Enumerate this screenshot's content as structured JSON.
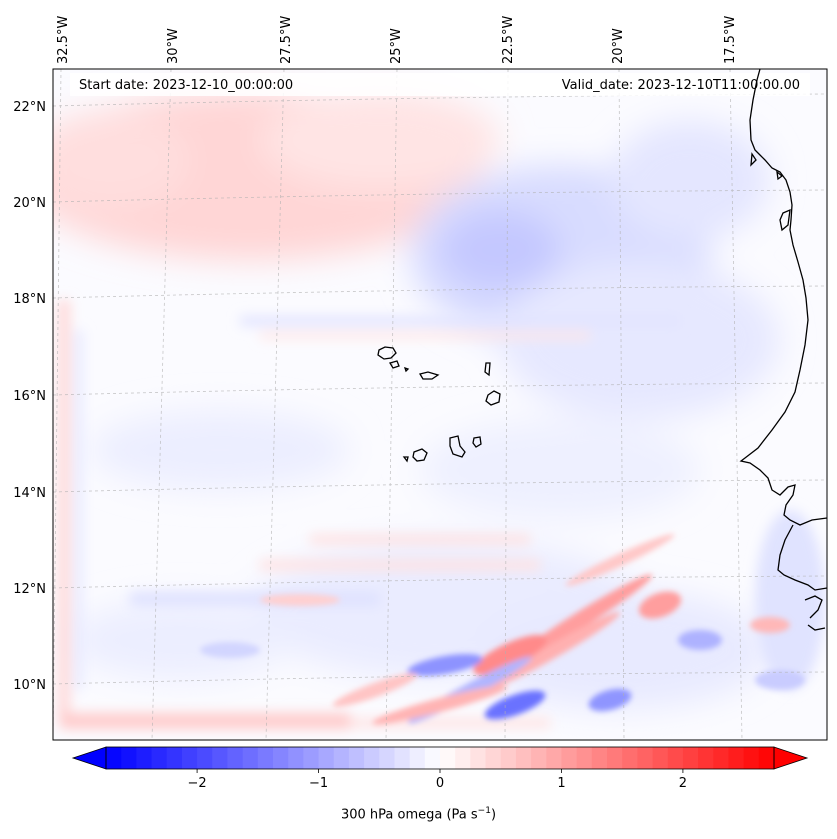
{
  "header": {
    "start_date": "Start date: 2023-12-10_00:00:00",
    "valid_date": "Valid_date: 2023-12-10T11:00:00.00"
  },
  "axes": {
    "lon_labels": [
      "32.5°W",
      "30°W",
      "27.5°W",
      "25°W",
      "22.5°W",
      "20°W",
      "17.5°W"
    ],
    "lat_labels": [
      "22°N",
      "20°N",
      "18°N",
      "16°N",
      "14°N",
      "12°N",
      "10°N"
    ]
  },
  "colorbar": {
    "label_main": "300 hPa omega (Pa s",
    "label_sup": "−1",
    "label_end": ")",
    "ticks": [
      "−2",
      "−1",
      "0",
      "1",
      "2"
    ],
    "min": -2.75,
    "max": 2.75,
    "extend": "both"
  },
  "colors": {
    "negative": "#0000ff",
    "neutral": "#ffffff",
    "positive": "#ff0000",
    "coastline": "#000000",
    "gridline": "#b0b0b0"
  },
  "map": {
    "projection": "lambert-conformal",
    "field": "300 hPa omega",
    "extent": {
      "lon_min": -33,
      "lon_max": -15.5,
      "lat_min": 9,
      "lat_max": 22.8
    },
    "features": [
      "coastline",
      "cape-verde-islands",
      "gridlines"
    ]
  }
}
